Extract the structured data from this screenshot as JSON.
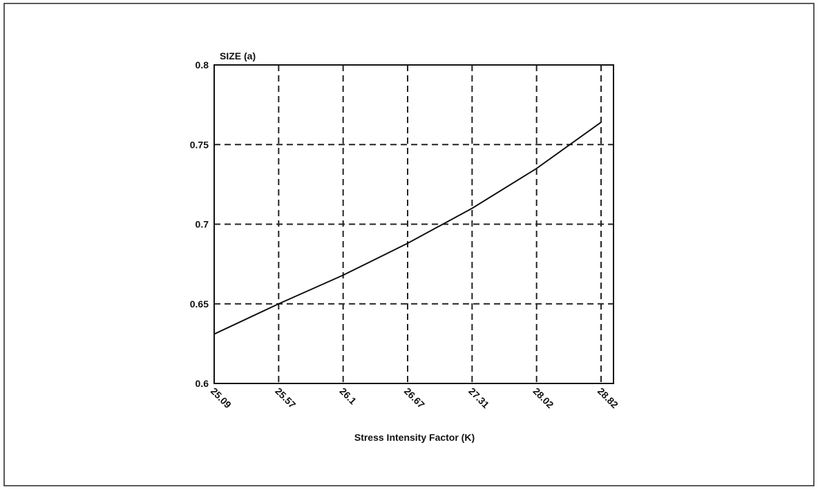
{
  "chart_data": {
    "type": "line",
    "y_label": "SIZE (a)",
    "x_label": "Stress Intensity Factor (K)",
    "categories": [
      "25.09",
      "25.57",
      "26.1",
      "26.67",
      "27.31",
      "28.02",
      "28.82"
    ],
    "series": [
      {
        "name": "SIZE (a)",
        "color": "#111111",
        "values": [
          0.631,
          0.65,
          0.668,
          0.688,
          0.71,
          0.735,
          0.764
        ]
      }
    ],
    "ylim": [
      0.6,
      0.8
    ],
    "yticks": [
      0.6,
      0.65,
      0.7,
      0.75,
      0.8
    ],
    "grid": true
  }
}
